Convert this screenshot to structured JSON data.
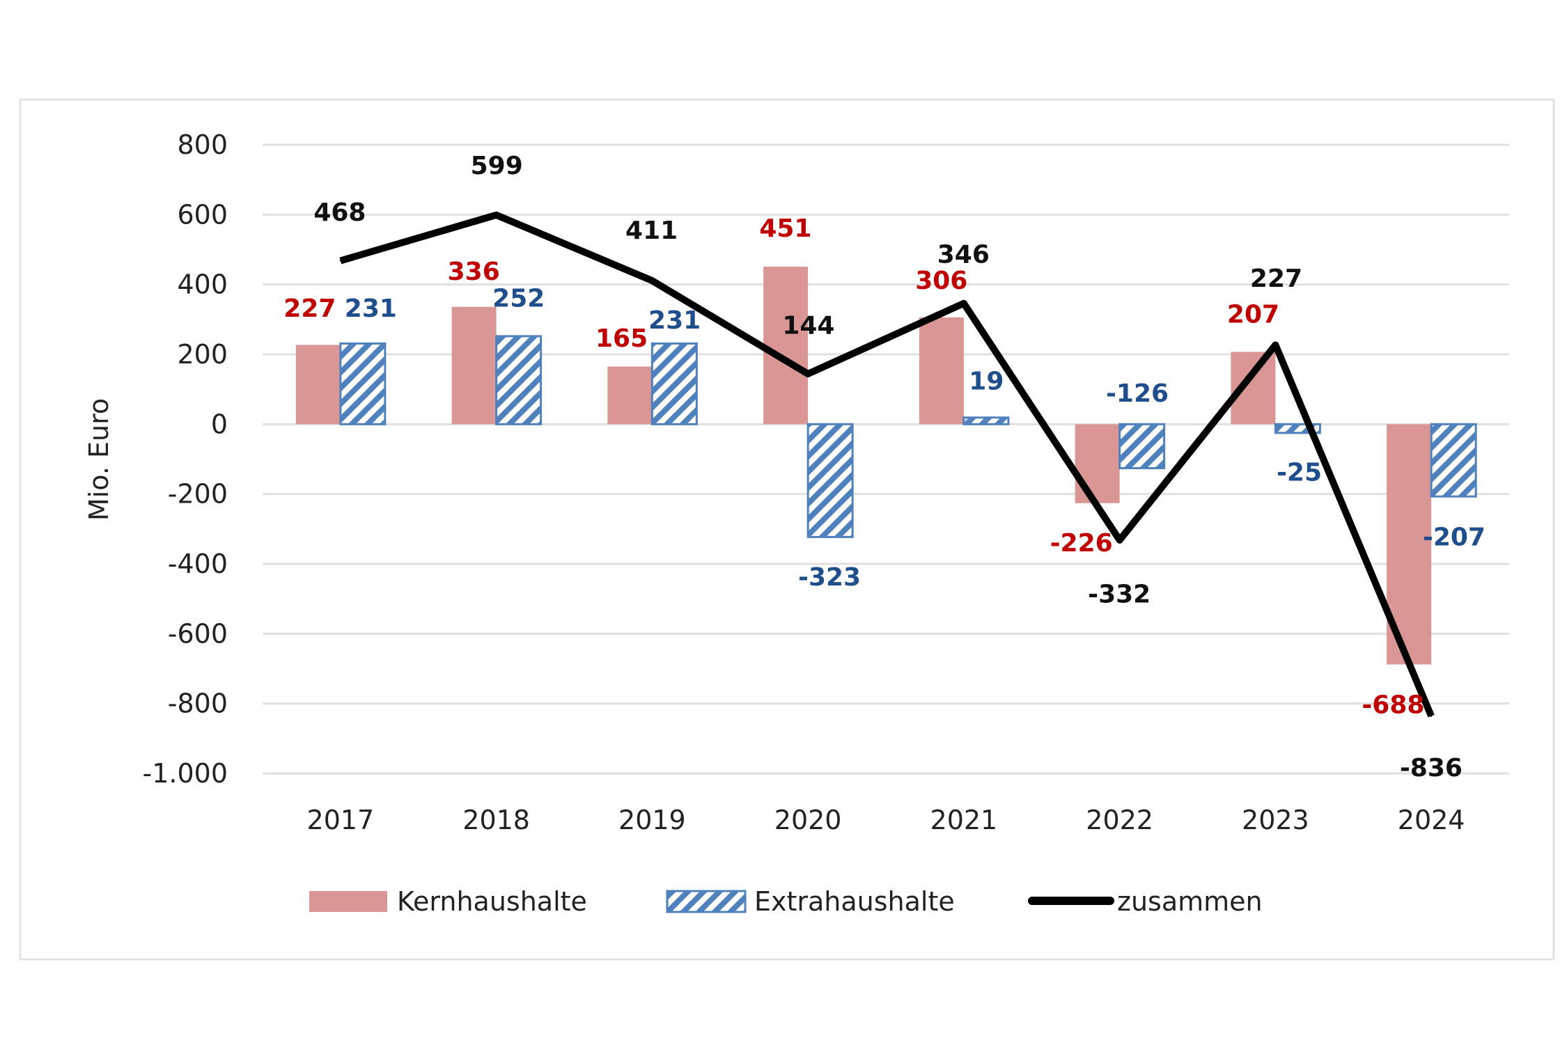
{
  "chart_data": {
    "type": "bar",
    "title": "",
    "xlabel": "",
    "ylabel": "Mio. Euro",
    "ylim": [
      -1000,
      800
    ],
    "yticks": [
      800,
      600,
      400,
      200,
      0,
      -200,
      -400,
      -600,
      -800,
      -1000
    ],
    "ytick_labels": [
      "800",
      "600",
      "400",
      "200",
      "0",
      "-200",
      "-400",
      "-600",
      "-800",
      "-1.000"
    ],
    "grid": true,
    "legend": "bottom",
    "categories": [
      "2017",
      "2018",
      "2019",
      "2020",
      "2021",
      "2022",
      "2023",
      "2024"
    ],
    "series": [
      {
        "name": "Kernhaushalte",
        "kind": "bar",
        "color": "#d99694",
        "label_color": "#c00000",
        "values": [
          227,
          336,
          165,
          451,
          306,
          -226,
          207,
          -688
        ]
      },
      {
        "name": "Extrahaushalte",
        "kind": "bar-hatched",
        "color": "#4f81bd",
        "label_color": "#1f4e8c",
        "values": [
          231,
          252,
          231,
          -323,
          19,
          -126,
          -25,
          -207
        ]
      },
      {
        "name": "zusammen",
        "kind": "line",
        "color": "#000000",
        "label_color": "#111111",
        "values": [
          468,
          599,
          411,
          144,
          346,
          -332,
          227,
          -836
        ]
      }
    ]
  }
}
